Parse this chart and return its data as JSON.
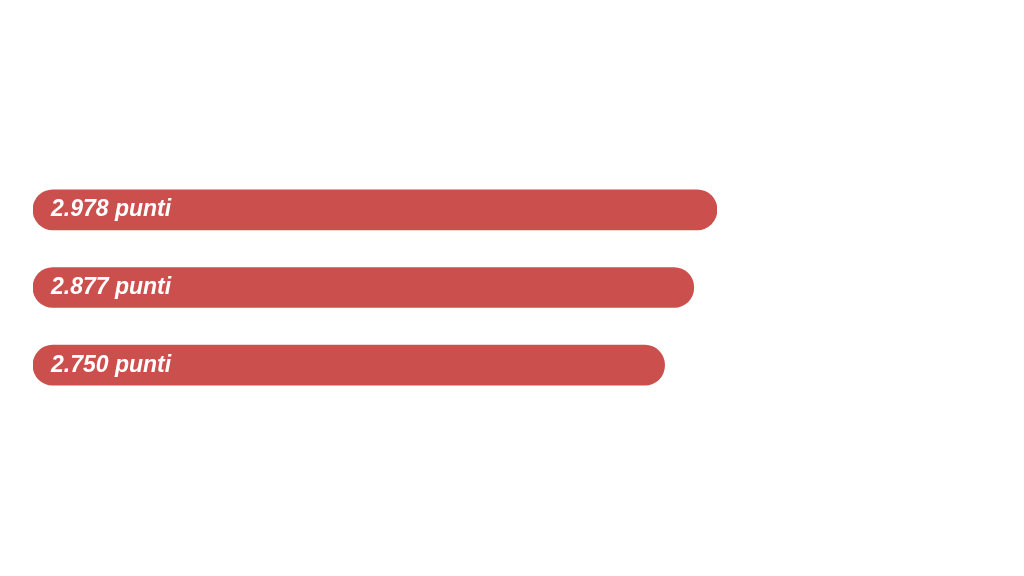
{
  "chart_data": {
    "type": "bar",
    "orientation": "horizontal",
    "categories": [
      null,
      null,
      null
    ],
    "values": [
      2978,
      2877,
      2750
    ],
    "value_labels": [
      "2.978 punti",
      "2.877 punti",
      "2.750 punti"
    ],
    "color": "#cb4f4c",
    "legend": false,
    "tick_labels": false
  }
}
